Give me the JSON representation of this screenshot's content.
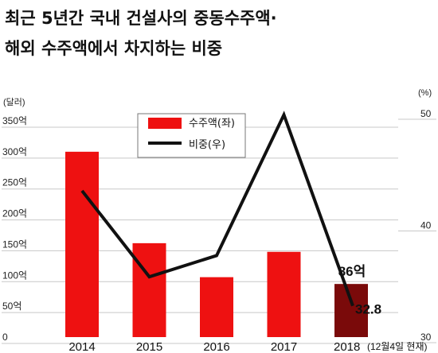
{
  "title_line1": "최근 5년간 국내 건설사의 중동수주액·",
  "title_line2": "해외 수주액에서 차지하는 비중",
  "left_unit": "(달러)",
  "right_unit": "(%)",
  "colors": {
    "bar": "#ee1111",
    "bar_highlight": "#7a0a0a",
    "line": "#111111",
    "grid": "#c8c8c8"
  },
  "chart_data": {
    "type": "bar",
    "categories": [
      "2014",
      "2015",
      "2016",
      "2017",
      "2018"
    ],
    "x_note": "(12월4일 현재)",
    "series": [
      {
        "name": "수주액(좌)",
        "type": "bar",
        "axis": "left",
        "values": [
          300,
          152,
          97,
          138,
          86
        ]
      },
      {
        "name": "비중(우)",
        "type": "line",
        "axis": "right",
        "values": [
          43.1,
          35.4,
          37.3,
          49.9,
          32.8
        ]
      }
    ],
    "left_axis": {
      "ylim": [
        0,
        350
      ],
      "ticks": [
        "0",
        "50억",
        "100억",
        "150억",
        "200억",
        "250억",
        "300억",
        "350억"
      ]
    },
    "right_axis": {
      "ylim": [
        30,
        50
      ],
      "ticks": [
        "30",
        "40",
        "50"
      ]
    },
    "legend": [
      "수주액(좌)",
      "비중(우)"
    ],
    "legend_position": "top-center",
    "annotations": [
      {
        "series": "수주액(좌)",
        "category": "2018",
        "text": "86억"
      },
      {
        "series": "비중(우)",
        "category": "2018",
        "text": "32.8"
      }
    ],
    "grid": true
  }
}
